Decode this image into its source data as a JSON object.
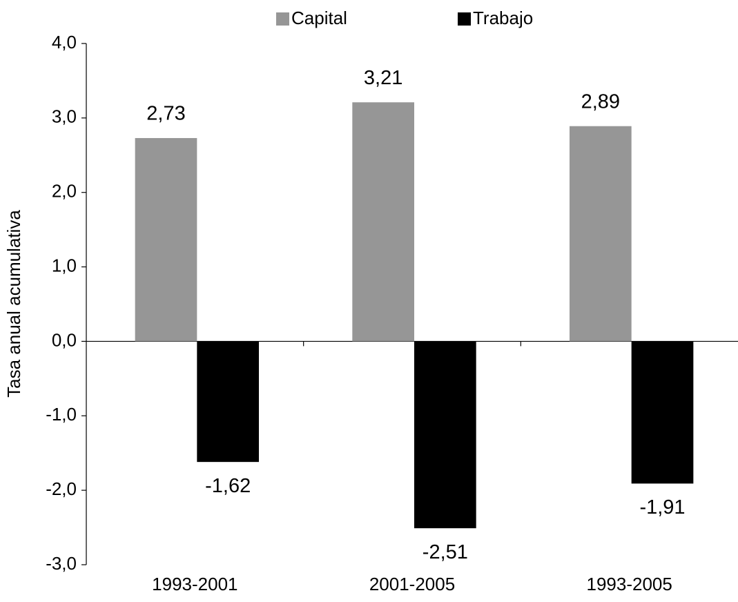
{
  "chart_data": {
    "type": "bar",
    "y_label": "Tasa anual acumulativa",
    "categories": [
      "1993-2001",
      "2001-2005",
      "1993-2005"
    ],
    "series": [
      {
        "name": "Capital",
        "color": "#969696",
        "values": [
          2.73,
          3.21,
          2.89
        ],
        "value_labels": [
          "2,73",
          "3,21",
          "2,89"
        ]
      },
      {
        "name": "Trabajo",
        "color": "#000000",
        "values": [
          -1.62,
          -2.51,
          -1.91
        ],
        "value_labels": [
          "-1,62",
          "-2,51",
          "-1,91"
        ]
      }
    ],
    "ylim": [
      -3,
      4
    ],
    "yticks": [
      {
        "value": -3,
        "label": "-3,0"
      },
      {
        "value": -2,
        "label": "-2,0"
      },
      {
        "value": -1,
        "label": "-1,0"
      },
      {
        "value": 0,
        "label": "0,0"
      },
      {
        "value": 1,
        "label": "1,0"
      },
      {
        "value": 2,
        "label": "2,0"
      },
      {
        "value": 3,
        "label": "3,0"
      },
      {
        "value": 4,
        "label": "4,0"
      }
    ],
    "legend": "top"
  }
}
